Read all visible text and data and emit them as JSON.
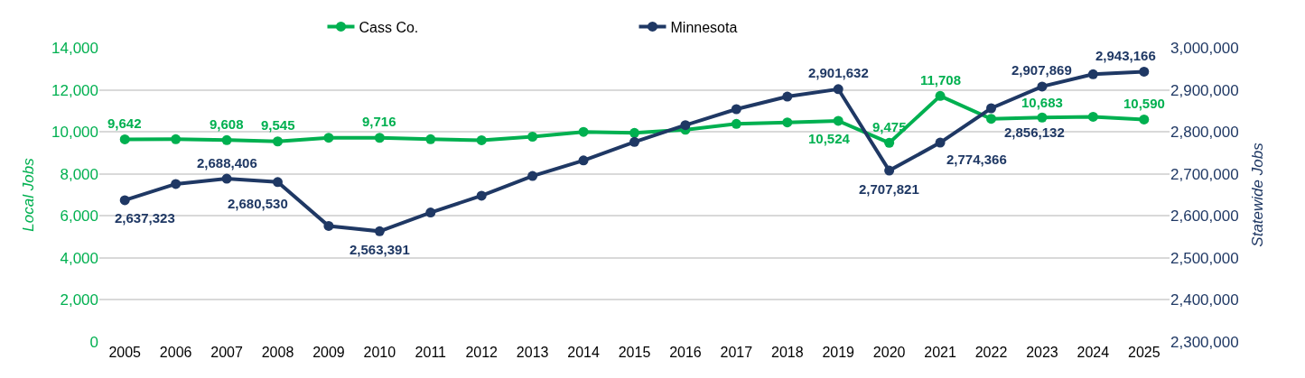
{
  "chart_data": {
    "type": "line",
    "xlabel": null,
    "ylabel": "Local Jobs",
    "y2label": "Statewide Jobs",
    "categories": [
      "2005",
      "2006",
      "2007",
      "2008",
      "2009",
      "2010",
      "2011",
      "2012",
      "2013",
      "2014",
      "2015",
      "2016",
      "2017",
      "2018",
      "2019",
      "2020",
      "2021",
      "2022",
      "2023",
      "2024",
      "2025"
    ],
    "series": [
      {
        "name": "Cass Co.",
        "color": "#00b050",
        "values": [
          9642,
          9650,
          9608,
          9545,
          9720,
          9716,
          9650,
          9600,
          9770,
          10000,
          9950,
          10100,
          10380,
          10450,
          10524,
          9475,
          11708,
          10620,
          10683,
          10720,
          10590
        ],
        "value_labels": [
          "9,642",
          null,
          "9,608",
          "9,545",
          null,
          "9,716",
          null,
          null,
          null,
          null,
          null,
          null,
          null,
          null,
          "10,524",
          "9,475",
          "11,708",
          null,
          "10,683",
          null,
          "10,590"
        ]
      },
      {
        "name": "Minnesota",
        "color": "#1f3864",
        "axis": "y2",
        "values": [
          2637323,
          2676000,
          2688406,
          2680530,
          2576000,
          2563391,
          2608000,
          2648000,
          2695000,
          2732000,
          2776000,
          2816000,
          2854000,
          2884000,
          2901632,
          2707821,
          2774366,
          2856132,
          2907869,
          2937000,
          2943166
        ],
        "value_labels": [
          "2,637,323",
          null,
          "2,688,406",
          "2,680,530",
          null,
          "2,563,391",
          null,
          null,
          null,
          null,
          null,
          null,
          null,
          null,
          "2,901,632",
          "2,707,821",
          "2,774,366",
          "2,856,132",
          "2,907,869",
          null,
          "2,943,166"
        ]
      }
    ],
    "ylim": [
      0,
      14000
    ],
    "yticks": [
      {
        "value": 0,
        "label": "0"
      },
      {
        "value": 2000,
        "label": "2,000"
      },
      {
        "value": 4000,
        "label": "4,000"
      },
      {
        "value": 6000,
        "label": "6,000"
      },
      {
        "value": 8000,
        "label": "8,000"
      },
      {
        "value": 10000,
        "label": "10,000"
      },
      {
        "value": 12000,
        "label": "12,000"
      },
      {
        "value": 14000,
        "label": "14,000"
      }
    ],
    "y2lim": [
      2300000,
      3000000
    ],
    "y2ticks": [
      {
        "value": 2300000,
        "label": "2,300,000"
      },
      {
        "value": 2400000,
        "label": "2,400,000"
      },
      {
        "value": 2500000,
        "label": "2,500,000"
      },
      {
        "value": 2600000,
        "label": "2,600,000"
      },
      {
        "value": 2700000,
        "label": "2,700,000"
      },
      {
        "value": 2800000,
        "label": "2,800,000"
      },
      {
        "value": 2900000,
        "label": "2,900,000"
      },
      {
        "value": 3000000,
        "label": "3,000,000"
      }
    ],
    "grid": "y",
    "legend": "top",
    "marker": "circle",
    "line_style": "solid"
  }
}
